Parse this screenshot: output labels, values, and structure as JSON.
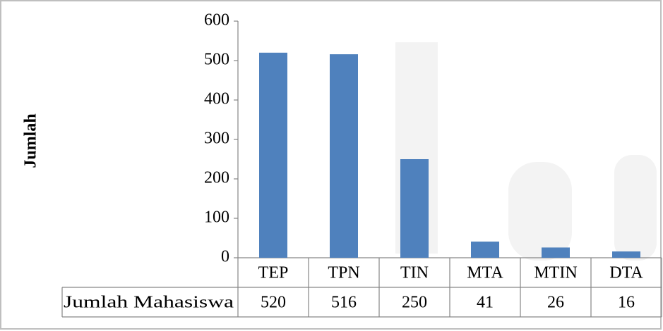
{
  "chart_data": {
    "type": "bar",
    "y_label": "Jumlah",
    "categories": [
      "TEP",
      "TPN",
      "TIN",
      "MTA",
      "MTIN",
      "DTA"
    ],
    "series": [
      {
        "name": "Jumlah Mahasiswa",
        "color": "#4f81bd",
        "values": [
          520,
          516,
          250,
          41,
          26,
          16
        ]
      }
    ],
    "ylim": [
      0,
      600
    ],
    "yticks": [
      0,
      100,
      200,
      300,
      400,
      500,
      600
    ],
    "grid": false,
    "data_table": true
  }
}
